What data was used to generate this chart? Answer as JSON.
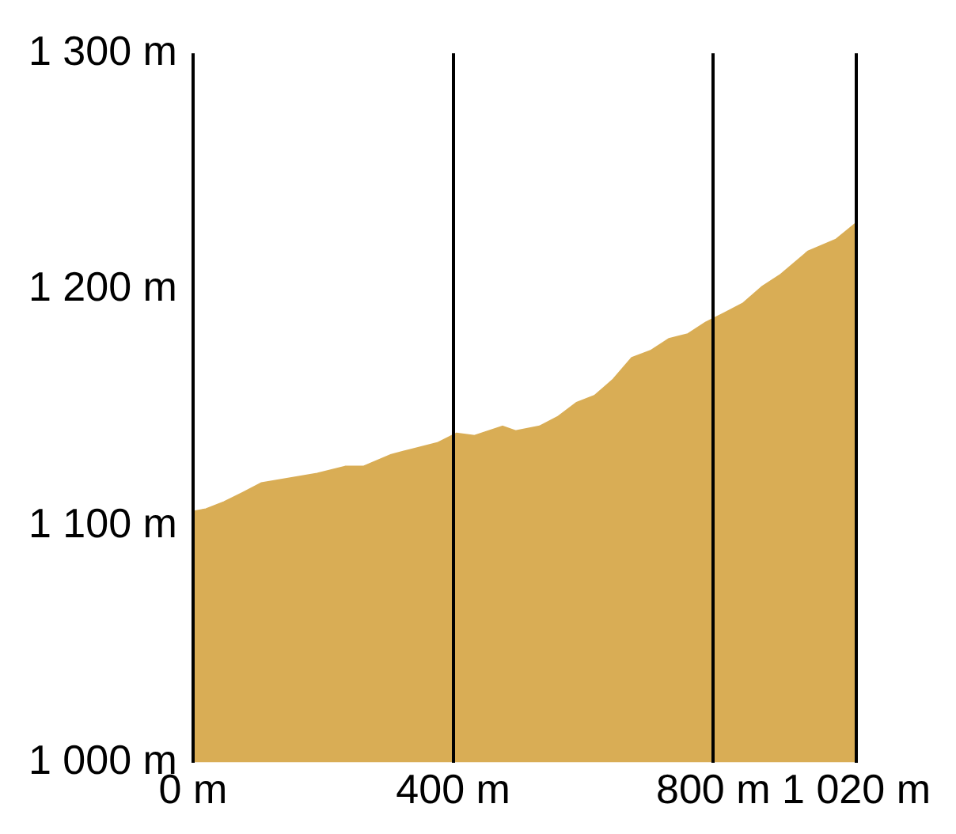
{
  "chart_data": {
    "type": "area",
    "x": [
      0,
      20,
      48,
      77,
      105,
      148,
      191,
      234,
      262,
      305,
      333,
      376,
      405,
      433,
      476,
      496,
      533,
      561,
      590,
      618,
      647,
      675,
      704,
      732,
      761,
      789,
      818,
      846,
      875,
      903,
      946,
      989,
      1020
    ],
    "series": [
      {
        "color": "#d9ad55",
        "values": [
          1106,
          1107,
          1110,
          1114,
          1118,
          1120,
          1122,
          1125,
          1125,
          1130,
          1132,
          1135,
          1139,
          1138,
          1142,
          1140,
          1142,
          1146,
          1152,
          1155,
          1162,
          1171,
          1174,
          1179,
          1181,
          1186,
          1190,
          1194,
          1201,
          1206,
          1216,
          1221,
          1228
        ]
      }
    ],
    "xlim": [
      0,
      1020
    ],
    "xticks": [
      {
        "value": 0,
        "label": "0 m"
      },
      {
        "value": 400,
        "label": "400 m"
      },
      {
        "value": 800,
        "label": "800 m"
      },
      {
        "value": 1020,
        "label": "1 020 m"
      }
    ],
    "ylim": [
      1000,
      1300
    ],
    "yticks": [
      {
        "value": 1000,
        "label": "1 000 m"
      },
      {
        "value": 1100,
        "label": "1 100 m"
      },
      {
        "value": 1200,
        "label": "1 200 m"
      },
      {
        "value": 1300,
        "label": "1 300 m"
      }
    ],
    "grid": "x",
    "legend": false,
    "marker": "none"
  }
}
